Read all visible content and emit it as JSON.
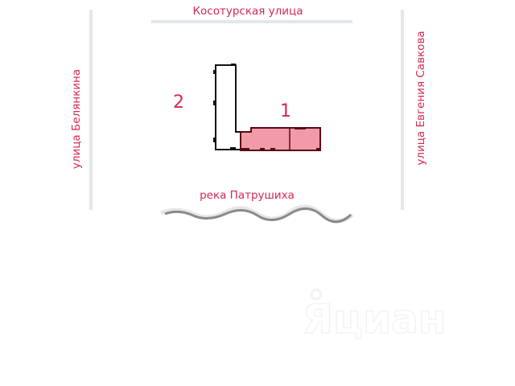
{
  "colors": {
    "label": "#d6284f",
    "road": "#e3e7ea",
    "building_fill": "#f19aa8",
    "building_stroke": "#5a0a14",
    "river": "#8a8a8a",
    "watermark": "#f4f4f4"
  },
  "streets": {
    "top": "Косотурская  улица",
    "left": "улица  Белянкина",
    "right": "улица  Евгения  Савкова",
    "river": "река  Патрушиха"
  },
  "buildings": [
    {
      "number": "1",
      "highlighted": true
    },
    {
      "number": "2",
      "highlighted": false
    }
  ],
  "watermark": "циан"
}
